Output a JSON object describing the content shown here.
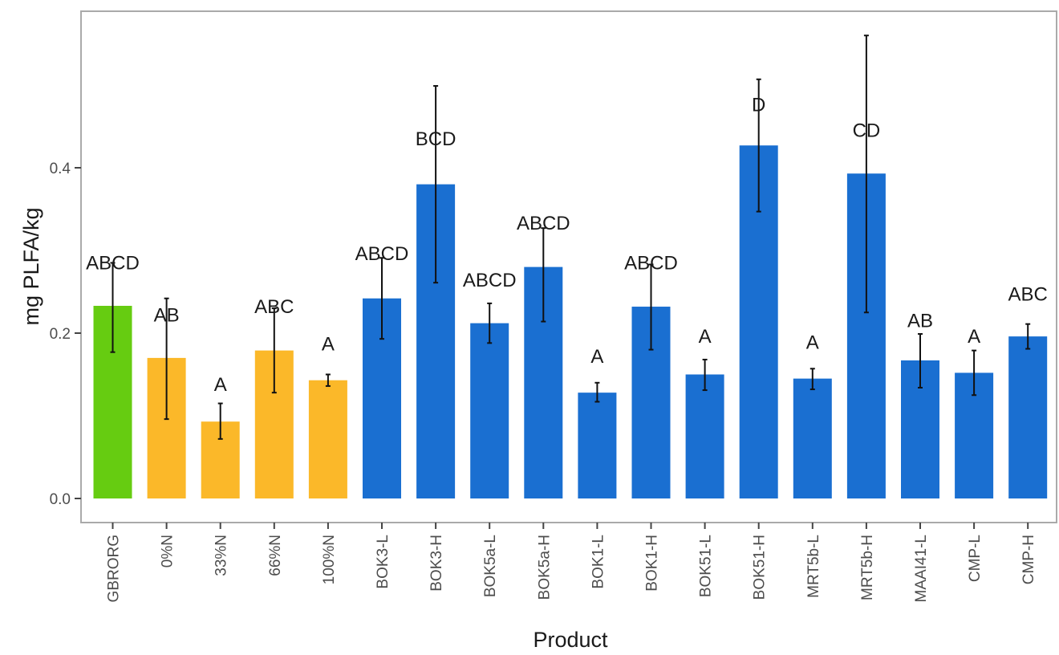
{
  "chart_data": {
    "type": "bar",
    "title": "",
    "xlabel": "Product",
    "ylabel": "mg PLFA/kg",
    "ylim": [
      -0.03,
      0.56
    ],
    "yticks": [
      "0.0",
      "0.2",
      "0.4"
    ],
    "ytick_values": [
      0.0,
      0.2,
      0.4
    ],
    "grid": false,
    "legend": "none",
    "colors": {
      "green": "#66cc11",
      "orange": "#fbb829",
      "blue": "#1a6fd1",
      "errorbar": "#111111",
      "frame": "#aaaaaa"
    },
    "categories": [
      "GBRORG",
      "0%N",
      "33%N",
      "66%N",
      "100%N",
      "BOK3-L",
      "BOK3-H",
      "BOK5a-L",
      "BOK5a-H",
      "BOK1-L",
      "BOK1-H",
      "BOK51-L",
      "BOK51-H",
      "MRT5b-L",
      "MRT5b-H",
      "MAAI41-L",
      "CMP-L",
      "CMP-H"
    ],
    "values": [
      0.233,
      0.17,
      0.093,
      0.179,
      0.143,
      0.242,
      0.38,
      0.212,
      0.28,
      0.128,
      0.232,
      0.15,
      0.427,
      0.145,
      0.393,
      0.167,
      0.152,
      0.196
    ],
    "err_low": [
      0.177,
      0.096,
      0.072,
      0.128,
      0.136,
      0.193,
      0.261,
      0.188,
      0.214,
      0.117,
      0.18,
      0.131,
      0.347,
      0.132,
      0.225,
      0.134,
      0.125,
      0.181
    ],
    "err_high": [
      0.285,
      0.242,
      0.115,
      0.23,
      0.15,
      0.291,
      0.499,
      0.236,
      0.327,
      0.14,
      0.283,
      0.168,
      0.507,
      0.157,
      0.56,
      0.199,
      0.179,
      0.211
    ],
    "bar_colors": [
      "green",
      "orange",
      "orange",
      "orange",
      "orange",
      "blue",
      "blue",
      "blue",
      "blue",
      "blue",
      "blue",
      "blue",
      "blue",
      "blue",
      "blue",
      "blue",
      "blue",
      "blue"
    ],
    "annotations": [
      "ABCD",
      "AB",
      "A",
      "ABC",
      "A",
      "ABCD",
      "BCD",
      "ABCD",
      "ABCD",
      "A",
      "ABCD",
      "A",
      "D",
      "A",
      "CD",
      "AB",
      "A",
      "ABC"
    ],
    "annotation_values": [
      0.285,
      0.222,
      0.138,
      0.232,
      0.187,
      0.296,
      0.435,
      0.264,
      0.333,
      0.172,
      0.285,
      0.196,
      0.476,
      0.189,
      0.445,
      0.215,
      0.196,
      0.247
    ]
  }
}
